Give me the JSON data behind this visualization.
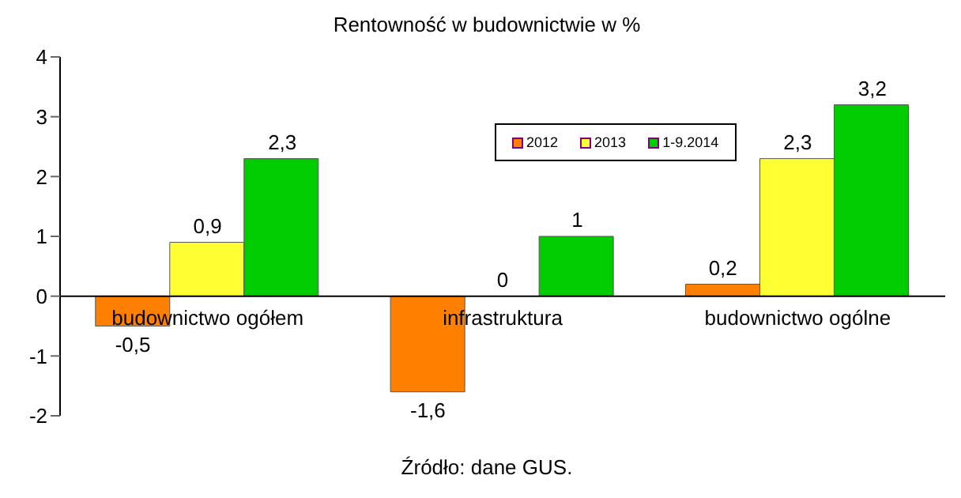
{
  "chart_data": {
    "type": "bar",
    "title": "Rentowność w budownictwie w %",
    "categories": [
      "budownictwo ogółem",
      "infrastruktura",
      "budownictwo ogólne"
    ],
    "series": [
      {
        "name": "2012",
        "color": "#ff8000",
        "values": [
          -0.5,
          -1.6,
          0.2
        ],
        "value_labels": [
          "-0,5",
          "-1,6",
          "0,2"
        ]
      },
      {
        "name": "2013",
        "color": "#ffff33",
        "values": [
          0.9,
          0,
          2.3
        ],
        "value_labels": [
          "0,9",
          "0",
          "2,3"
        ]
      },
      {
        "name": "1-9.2014",
        "color": "#00cc00",
        "values": [
          2.3,
          1,
          3.2
        ],
        "value_labels": [
          "2,3",
          "1",
          "3,2"
        ]
      }
    ],
    "ylim": [
      -2,
      4
    ],
    "yticks": [
      -2,
      -1,
      0,
      1,
      2,
      3,
      4
    ],
    "grid": false,
    "legend": "top",
    "annotations": [
      "Źródło: dane GUS."
    ]
  }
}
